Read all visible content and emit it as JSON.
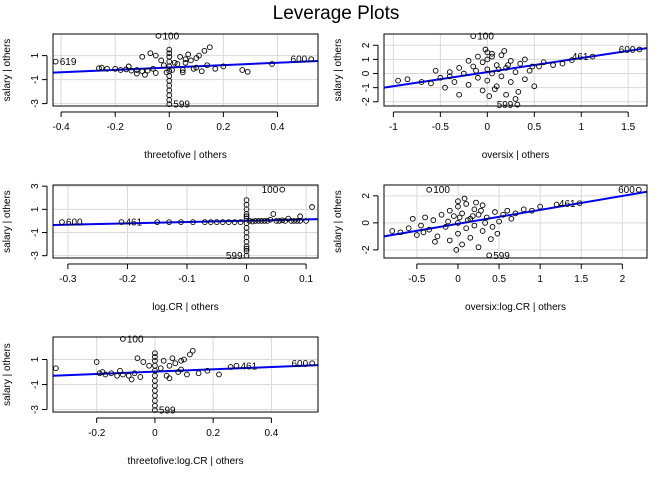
{
  "figure": {
    "title": "Leverage Plots",
    "point_color": "#000000",
    "line_color": "#0000ee",
    "grid_color": "#d9d9d9"
  },
  "chart_data": [
    {
      "type": "scatter",
      "xlabel": "threetofive | others",
      "ylabel": "salary | others",
      "xlim": [
        -0.43,
        0.55
      ],
      "ylim": [
        -3.2,
        2.8
      ],
      "xticks": [
        -0.4,
        -0.2,
        0.0,
        0.2,
        0.4
      ],
      "yticks": [
        -3,
        -1,
        1
      ],
      "fit_line": [
        [
          -0.43,
          -0.42
        ],
        [
          0.55,
          0.55
        ]
      ],
      "labels": [
        {
          "text": "100",
          "x": -0.04,
          "y": 2.65,
          "pos": "right"
        },
        {
          "text": "619",
          "x": -0.42,
          "y": 0.5,
          "pos": "right"
        },
        {
          "text": "600",
          "x": 0.525,
          "y": 0.7,
          "pos": "left"
        },
        {
          "text": "599",
          "x": 0.0,
          "y": -3.05,
          "pos": "right"
        }
      ],
      "points": [
        [
          -0.04,
          2.65
        ],
        [
          -0.42,
          0.5
        ],
        [
          0.525,
          0.7
        ],
        [
          0.0,
          -3.05
        ],
        [
          0.0,
          -2.7
        ],
        [
          0.0,
          -2.3
        ],
        [
          0.0,
          -1.9
        ],
        [
          0.0,
          -1.5
        ],
        [
          0.0,
          -1.1
        ],
        [
          0.0,
          -0.7
        ],
        [
          0.0,
          -0.3
        ],
        [
          0.0,
          0.1
        ],
        [
          0.0,
          0.5
        ],
        [
          0.0,
          0.9
        ],
        [
          0.0,
          1.2
        ],
        [
          0.0,
          1.5
        ],
        [
          -0.01,
          -0.4
        ],
        [
          0.01,
          -0.2
        ],
        [
          -0.02,
          0.2
        ],
        [
          0.02,
          0.4
        ],
        [
          -0.26,
          -0.05
        ],
        [
          -0.23,
          -0.1
        ],
        [
          -0.2,
          -0.1
        ],
        [
          -0.18,
          -0.2
        ],
        [
          -0.16,
          -0.15
        ],
        [
          -0.14,
          -0.25
        ],
        [
          -0.12,
          -0.2
        ],
        [
          -0.1,
          -0.3
        ],
        [
          -0.08,
          -0.25
        ],
        [
          -0.06,
          -0.1
        ],
        [
          -0.05,
          1.0
        ],
        [
          -0.07,
          1.2
        ],
        [
          -0.1,
          0.9
        ],
        [
          -0.12,
          -0.5
        ],
        [
          -0.09,
          -0.6
        ],
        [
          -0.05,
          -0.45
        ],
        [
          -0.03,
          0.6
        ],
        [
          0.03,
          0.3
        ],
        [
          0.05,
          -0.2
        ],
        [
          0.06,
          0.4
        ],
        [
          0.08,
          0.6
        ],
        [
          0.1,
          0.8
        ],
        [
          0.11,
          1.0
        ],
        [
          0.13,
          1.4
        ],
        [
          0.15,
          1.7
        ],
        [
          0.12,
          -0.3
        ],
        [
          0.09,
          -0.1
        ],
        [
          0.14,
          0.2
        ],
        [
          0.07,
          1.1
        ],
        [
          0.04,
          0.9
        ],
        [
          0.17,
          -0.1
        ],
        [
          0.2,
          0.1
        ],
        [
          0.27,
          -0.2
        ],
        [
          0.29,
          -0.35
        ],
        [
          0.38,
          0.3
        ],
        [
          -0.25,
          0.0
        ],
        [
          0.05,
          -0.4
        ],
        [
          0.1,
          0.0
        ],
        [
          -0.15,
          0.1
        ],
        [
          0.06,
          0.7
        ]
      ]
    },
    {
      "type": "scatter",
      "xlabel": "oversix | others",
      "ylabel": "salary | others",
      "xlim": [
        -1.1,
        1.7
      ],
      "ylim": [
        -2.3,
        2.8
      ],
      "xticks": [
        -1.0,
        -0.5,
        0.0,
        0.5,
        1.0,
        1.5
      ],
      "yticks": [
        -2,
        -1,
        0,
        1,
        2
      ],
      "fit_line": [
        [
          -1.1,
          -1.0
        ],
        [
          1.7,
          1.8
        ]
      ],
      "labels": [
        {
          "text": "100",
          "x": -0.15,
          "y": 2.65,
          "pos": "right"
        },
        {
          "text": "461",
          "x": 1.12,
          "y": 1.2,
          "pos": "left"
        },
        {
          "text": "600",
          "x": 1.62,
          "y": 1.7,
          "pos": "left"
        },
        {
          "text": "599",
          "x": 0.32,
          "y": -2.2,
          "pos": "left"
        }
      ],
      "points": [
        [
          -0.15,
          2.65
        ],
        [
          1.12,
          1.2
        ],
        [
          1.62,
          1.7
        ],
        [
          0.32,
          -2.2
        ],
        [
          -0.95,
          -0.5
        ],
        [
          -0.85,
          -0.4
        ],
        [
          -0.7,
          -0.6
        ],
        [
          -0.55,
          0.2
        ],
        [
          -0.5,
          -0.3
        ],
        [
          -0.45,
          -1.0
        ],
        [
          -0.4,
          0.1
        ],
        [
          -0.35,
          -0.6
        ],
        [
          -0.3,
          0.4
        ],
        [
          -0.25,
          0.0
        ],
        [
          -0.2,
          -0.8
        ],
        [
          -0.2,
          0.9
        ],
        [
          -0.15,
          0.5
        ],
        [
          -0.1,
          -0.3
        ],
        [
          -0.1,
          1.2
        ],
        [
          -0.05,
          0.8
        ],
        [
          -0.05,
          -1.2
        ],
        [
          0.0,
          1.5
        ],
        [
          0.0,
          0.3
        ],
        [
          0.0,
          -0.5
        ],
        [
          0.0,
          1.0
        ],
        [
          0.02,
          -1.6
        ],
        [
          0.05,
          1.2
        ],
        [
          0.05,
          0.0
        ],
        [
          0.1,
          0.6
        ],
        [
          0.1,
          -0.9
        ],
        [
          0.15,
          1.3
        ],
        [
          0.15,
          -0.2
        ],
        [
          0.2,
          0.4
        ],
        [
          0.2,
          -1.5
        ],
        [
          0.25,
          0.9
        ],
        [
          0.25,
          -0.6
        ],
        [
          0.3,
          0.1
        ],
        [
          0.3,
          -1.8
        ],
        [
          0.35,
          0.7
        ],
        [
          0.4,
          -0.4
        ],
        [
          0.4,
          1.0
        ],
        [
          0.45,
          0.2
        ],
        [
          0.5,
          -0.9
        ],
        [
          0.55,
          0.5
        ],
        [
          0.6,
          0.8
        ],
        [
          0.7,
          0.6
        ],
        [
          0.8,
          0.7
        ],
        [
          0.9,
          0.95
        ],
        [
          -0.3,
          -1.5
        ],
        [
          -0.6,
          -0.7
        ],
        [
          0.18,
          1.6
        ],
        [
          -0.02,
          1.7
        ],
        [
          0.08,
          -1.1
        ],
        [
          0.33,
          -1.3
        ],
        [
          -0.12,
          0.2
        ],
        [
          0.12,
          0.3
        ],
        [
          0.22,
          0.6
        ],
        [
          -0.4,
          -0.2
        ],
        [
          0.05,
          1.4
        ],
        [
          0.48,
          0.5
        ]
      ]
    },
    {
      "type": "scatter",
      "xlabel": "log.CR | others",
      "ylabel": "salary | others",
      "xlim": [
        -0.325,
        0.12
      ],
      "ylim": [
        -3.2,
        3.1
      ],
      "xticks": [
        -0.3,
        -0.2,
        -0.1,
        0.0,
        0.1
      ],
      "yticks": [
        -3,
        -1,
        1,
        3
      ],
      "fit_line": [
        [
          -0.325,
          -0.35
        ],
        [
          0.12,
          0.15
        ]
      ],
      "labels": [
        {
          "text": "100",
          "x": 0.06,
          "y": 2.7,
          "pos": "left"
        },
        {
          "text": "600",
          "x": -0.31,
          "y": -0.1,
          "pos": "right"
        },
        {
          "text": "461",
          "x": -0.21,
          "y": -0.1,
          "pos": "right"
        },
        {
          "text": "599",
          "x": 0.0,
          "y": -3.0,
          "pos": "left"
        }
      ],
      "points": [
        [
          0.06,
          2.7
        ],
        [
          -0.31,
          -0.1
        ],
        [
          -0.21,
          -0.1
        ],
        [
          0.0,
          -3.0
        ],
        [
          0.0,
          -2.6
        ],
        [
          0.0,
          -2.2
        ],
        [
          0.0,
          -1.8
        ],
        [
          0.0,
          -1.4
        ],
        [
          0.0,
          -1.0
        ],
        [
          0.0,
          -0.6
        ],
        [
          0.0,
          -0.2
        ],
        [
          0.0,
          0.2
        ],
        [
          0.0,
          0.6
        ],
        [
          0.0,
          1.0
        ],
        [
          0.0,
          1.4
        ],
        [
          0.0,
          1.8
        ],
        [
          0.0,
          -2.4
        ],
        [
          0.0,
          0.4
        ],
        [
          -0.15,
          -0.1
        ],
        [
          -0.13,
          -0.1
        ],
        [
          -0.11,
          -0.1
        ],
        [
          -0.09,
          -0.1
        ],
        [
          -0.07,
          -0.1
        ],
        [
          -0.06,
          -0.1
        ],
        [
          -0.05,
          -0.1
        ],
        [
          -0.04,
          -0.1
        ],
        [
          -0.03,
          -0.1
        ],
        [
          -0.02,
          -0.1
        ],
        [
          -0.01,
          -0.1
        ],
        [
          0.01,
          -0.05
        ],
        [
          0.02,
          0.0
        ],
        [
          0.03,
          0.0
        ],
        [
          0.04,
          0.1
        ],
        [
          0.05,
          0.0
        ],
        [
          0.06,
          0.05
        ],
        [
          0.07,
          0.2
        ],
        [
          0.08,
          0.0
        ],
        [
          0.09,
          0.0
        ],
        [
          0.1,
          0.0
        ],
        [
          0.11,
          1.2
        ],
        [
          0.09,
          0.4
        ],
        [
          0.085,
          0.0
        ],
        [
          0.075,
          0.0
        ],
        [
          0.065,
          0.0
        ],
        [
          0.055,
          0.0
        ],
        [
          0.045,
          0.6
        ],
        [
          0.035,
          0.0
        ],
        [
          0.025,
          0.0
        ],
        [
          0.015,
          0.0
        ],
        [
          0.005,
          0.0
        ]
      ]
    },
    {
      "type": "scatter",
      "xlabel": "oversix:log.CR | others",
      "ylabel": "salary | others",
      "xlim": [
        -0.9,
        2.3
      ],
      "ylim": [
        -2.6,
        2.8
      ],
      "xticks": [
        -0.5,
        0.0,
        0.5,
        1.0,
        1.5,
        2.0
      ],
      "yticks": [
        -2,
        0,
        2
      ],
      "fit_line": [
        [
          -0.9,
          -1.0
        ],
        [
          2.3,
          2.3
        ]
      ],
      "labels": [
        {
          "text": "100",
          "x": -0.35,
          "y": 2.45,
          "pos": "right"
        },
        {
          "text": "461",
          "x": 1.48,
          "y": 1.45,
          "pos": "left"
        },
        {
          "text": "600",
          "x": 2.2,
          "y": 2.45,
          "pos": "left"
        },
        {
          "text": "599",
          "x": 0.38,
          "y": -2.4,
          "pos": "right"
        }
      ],
      "points": [
        [
          -0.35,
          2.45
        ],
        [
          1.48,
          1.45
        ],
        [
          2.2,
          2.45
        ],
        [
          0.38,
          -2.4
        ],
        [
          -0.8,
          -0.6
        ],
        [
          -0.7,
          -0.7
        ],
        [
          -0.6,
          -0.4
        ],
        [
          -0.55,
          0.3
        ],
        [
          -0.5,
          -0.9
        ],
        [
          -0.45,
          -0.2
        ],
        [
          -0.4,
          0.4
        ],
        [
          -0.35,
          -0.5
        ],
        [
          -0.3,
          0.2
        ],
        [
          -0.25,
          -1.0
        ],
        [
          -0.2,
          0.6
        ],
        [
          -0.15,
          -0.3
        ],
        [
          -0.1,
          0.9
        ],
        [
          -0.1,
          -1.3
        ],
        [
          -0.05,
          0.5
        ],
        [
          0.0,
          1.6
        ],
        [
          0.0,
          0.0
        ],
        [
          0.0,
          -0.8
        ],
        [
          0.0,
          1.2
        ],
        [
          0.05,
          -1.6
        ],
        [
          0.05,
          0.7
        ],
        [
          0.1,
          1.4
        ],
        [
          0.1,
          -0.4
        ],
        [
          0.15,
          0.3
        ],
        [
          0.15,
          -1.1
        ],
        [
          0.2,
          1.0
        ],
        [
          0.2,
          -0.2
        ],
        [
          0.25,
          0.6
        ],
        [
          0.25,
          -1.8
        ],
        [
          0.3,
          1.3
        ],
        [
          0.3,
          -0.6
        ],
        [
          0.35,
          0.4
        ],
        [
          0.4,
          -1.2
        ],
        [
          0.45,
          0.8
        ],
        [
          0.5,
          0.1
        ],
        [
          0.55,
          0.6
        ],
        [
          0.6,
          0.9
        ],
        [
          0.7,
          0.7
        ],
        [
          0.8,
          1.0
        ],
        [
          0.9,
          0.9
        ],
        [
          1.0,
          1.2
        ],
        [
          1.2,
          1.35
        ],
        [
          0.08,
          1.8
        ],
        [
          -0.02,
          -2.0
        ],
        [
          0.12,
          0.2
        ],
        [
          0.22,
          1.5
        ],
        [
          -0.28,
          -1.4
        ],
        [
          0.33,
          0.0
        ],
        [
          0.42,
          -0.3
        ],
        [
          0.18,
          0.5
        ],
        [
          -0.12,
          0.1
        ],
        [
          0.02,
          0.4
        ],
        [
          0.28,
          0.9
        ],
        [
          -0.42,
          -0.7
        ],
        [
          0.48,
          -0.8
        ],
        [
          0.65,
          0.3
        ]
      ]
    },
    {
      "type": "scatter",
      "xlabel": "threetofive:log.CR | others",
      "ylabel": "salary | others",
      "xlim": [
        -0.35,
        0.56
      ],
      "ylim": [
        -3.2,
        2.8
      ],
      "xticks": [
        -0.2,
        0.0,
        0.2,
        0.4
      ],
      "yticks": [
        -3,
        -1,
        1
      ],
      "fit_line": [
        [
          -0.35,
          -0.3
        ],
        [
          0.56,
          0.55
        ]
      ],
      "labels": [
        {
          "text": "100",
          "x": -0.11,
          "y": 2.65,
          "pos": "right"
        },
        {
          "text": "461",
          "x": 0.28,
          "y": 0.5,
          "pos": "right"
        },
        {
          "text": "600",
          "x": 0.54,
          "y": 0.7,
          "pos": "left"
        },
        {
          "text": "599",
          "x": 0.0,
          "y": -3.05,
          "pos": "right"
        }
      ],
      "points": [
        [
          -0.11,
          2.65
        ],
        [
          0.28,
          0.5
        ],
        [
          0.54,
          0.7
        ],
        [
          0.0,
          -3.05
        ],
        [
          -0.34,
          0.3
        ],
        [
          0.0,
          -2.7
        ],
        [
          0.0,
          -2.3
        ],
        [
          0.0,
          -1.9
        ],
        [
          0.0,
          -1.5
        ],
        [
          0.0,
          -1.1
        ],
        [
          0.0,
          -0.7
        ],
        [
          0.0,
          -0.3
        ],
        [
          0.0,
          0.1
        ],
        [
          0.0,
          0.5
        ],
        [
          0.0,
          0.9
        ],
        [
          0.0,
          1.2
        ],
        [
          0.0,
          1.5
        ],
        [
          -0.2,
          0.8
        ],
        [
          -0.19,
          -0.1
        ],
        [
          -0.17,
          -0.2
        ],
        [
          -0.15,
          -0.1
        ],
        [
          -0.13,
          -0.3
        ],
        [
          -0.11,
          -0.2
        ],
        [
          -0.09,
          -0.3
        ],
        [
          -0.07,
          -0.1
        ],
        [
          -0.05,
          -0.4
        ],
        [
          -0.04,
          0.8
        ],
        [
          -0.06,
          1.1
        ],
        [
          -0.08,
          -0.6
        ],
        [
          -0.02,
          0.5
        ],
        [
          0.02,
          0.3
        ],
        [
          0.04,
          -0.3
        ],
        [
          0.05,
          0.5
        ],
        [
          0.07,
          0.7
        ],
        [
          0.09,
          0.9
        ],
        [
          0.1,
          1.0
        ],
        [
          0.12,
          1.4
        ],
        [
          0.13,
          1.7
        ],
        [
          0.11,
          -0.2
        ],
        [
          0.08,
          0.0
        ],
        [
          0.06,
          1.1
        ],
        [
          0.03,
          0.9
        ],
        [
          0.15,
          -0.1
        ],
        [
          0.18,
          0.1
        ],
        [
          0.22,
          -0.2
        ],
        [
          0.26,
          0.4
        ],
        [
          -0.18,
          0.0
        ],
        [
          0.05,
          -0.5
        ],
        [
          0.09,
          0.2
        ],
        [
          -0.12,
          0.1
        ]
      ]
    }
  ]
}
